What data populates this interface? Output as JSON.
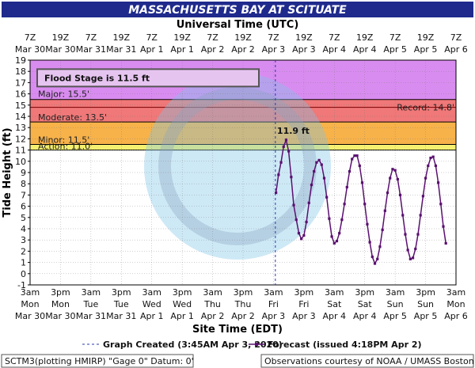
{
  "header": {
    "title": "MASSACHUSETTS BAY AT SCITUATE"
  },
  "chart_data": {
    "type": "line",
    "x_top_label": "Universal Time (UTC)",
    "x_bottom_label": "Site Time (EDT)",
    "ylabel": "Tide Height (ft)",
    "ylim": [
      -1,
      19
    ],
    "y_ticks": [
      -1,
      0,
      1,
      2,
      3,
      4,
      5,
      6,
      7,
      8,
      9,
      10,
      11,
      12,
      13,
      14,
      15,
      16,
      17,
      18,
      19
    ],
    "top_ticks": [
      [
        "7Z",
        "Mar 30"
      ],
      [
        "19Z",
        "Mar 30"
      ],
      [
        "7Z",
        "Mar 31"
      ],
      [
        "19Z",
        "Mar 31"
      ],
      [
        "7Z",
        "Apr 1"
      ],
      [
        "19Z",
        "Apr 1"
      ],
      [
        "7Z",
        "Apr 2"
      ],
      [
        "19Z",
        "Apr 2"
      ],
      [
        "7Z",
        "Apr 3"
      ],
      [
        "19Z",
        "Apr 3"
      ],
      [
        "7Z",
        "Apr 4"
      ],
      [
        "19Z",
        "Apr 4"
      ],
      [
        "7Z",
        "Apr 5"
      ],
      [
        "19Z",
        "Apr 5"
      ],
      [
        "7Z",
        "Apr 6"
      ]
    ],
    "bottom_ticks": [
      [
        "3am",
        "Mon",
        "Mar 30"
      ],
      [
        "3pm",
        "Mon",
        "Mar 30"
      ],
      [
        "3am",
        "Tue",
        "Mar 31"
      ],
      [
        "3pm",
        "Tue",
        "Mar 31"
      ],
      [
        "3am",
        "Wed",
        "Apr 1"
      ],
      [
        "3pm",
        "Wed",
        "Apr 1"
      ],
      [
        "3am",
        "Thu",
        "Apr 2"
      ],
      [
        "3pm",
        "Thu",
        "Apr 2"
      ],
      [
        "3am",
        "Fri",
        "Apr 3"
      ],
      [
        "3pm",
        "Fri",
        "Apr 3"
      ],
      [
        "3am",
        "Sat",
        "Apr 4"
      ],
      [
        "3pm",
        "Sat",
        "Apr 4"
      ],
      [
        "3am",
        "Sun",
        "Apr 5"
      ],
      [
        "3pm",
        "Sun",
        "Apr 5"
      ],
      [
        "3am",
        "Mon",
        "Apr 6"
      ]
    ],
    "flood_stage_box": "Flood Stage is 11.5 ft",
    "bands": [
      {
        "name": "Major",
        "label": "Major: 15.5'",
        "from": 15.5,
        "to": 19,
        "color": "#d98cf0"
      },
      {
        "name": "Moderate",
        "label": "Moderate: 13.5'",
        "from": 13.5,
        "to": 15.5,
        "color": "#f07878"
      },
      {
        "name": "Minor",
        "label": "Minor: 11.5'",
        "from": 11.5,
        "to": 13.5,
        "color": "#f7b24a"
      },
      {
        "name": "Action",
        "label": "Action: 11.0'",
        "from": 11.0,
        "to": 11.5,
        "color": "#f5f070"
      }
    ],
    "record": {
      "label": "Record: 14.8'",
      "value": 14.8
    },
    "created_marker": {
      "hours": 96.75
    },
    "peak_label": "11.9 ft",
    "series": [
      {
        "name": "Forecast (issued 4:18PM Apr 2)",
        "color": "#5a1070",
        "points": [
          [
            97,
            7.2
          ],
          [
            98,
            8.8
          ],
          [
            99,
            9.9
          ],
          [
            100,
            11.3
          ],
          [
            101,
            11.9
          ],
          [
            102,
            10.9
          ],
          [
            103,
            8.6
          ],
          [
            104,
            6.1
          ],
          [
            105,
            4.8
          ],
          [
            106,
            3.6
          ],
          [
            107,
            3.1
          ],
          [
            108,
            3.4
          ],
          [
            109,
            4.6
          ],
          [
            110,
            6.3
          ],
          [
            111,
            7.9
          ],
          [
            112,
            9.1
          ],
          [
            113,
            9.9
          ],
          [
            114,
            10.1
          ],
          [
            115,
            9.7
          ],
          [
            116,
            8.5
          ],
          [
            117,
            6.8
          ],
          [
            118,
            4.9
          ],
          [
            119,
            3.3
          ],
          [
            120,
            2.7
          ],
          [
            121,
            2.9
          ],
          [
            122,
            3.6
          ],
          [
            123,
            4.8
          ],
          [
            124,
            6.2
          ],
          [
            125,
            7.7
          ],
          [
            126,
            9.1
          ],
          [
            127,
            10.2
          ],
          [
            128,
            10.5
          ],
          [
            129,
            10.5
          ],
          [
            130,
            9.6
          ],
          [
            131,
            8.1
          ],
          [
            132,
            6.2
          ],
          [
            133,
            4.4
          ],
          [
            134,
            2.8
          ],
          [
            135,
            1.5
          ],
          [
            136,
            0.9
          ],
          [
            137,
            1.3
          ],
          [
            138,
            2.4
          ],
          [
            139,
            3.9
          ],
          [
            140,
            5.6
          ],
          [
            141,
            7.2
          ],
          [
            142,
            8.5
          ],
          [
            143,
            9.3
          ],
          [
            144,
            9.2
          ],
          [
            145,
            8.4
          ],
          [
            146,
            7.0
          ],
          [
            147,
            5.2
          ],
          [
            148,
            3.5
          ],
          [
            149,
            2.1
          ],
          [
            150,
            1.3
          ],
          [
            151,
            1.4
          ],
          [
            152,
            2.2
          ],
          [
            153,
            3.5
          ],
          [
            154,
            5.2
          ],
          [
            155,
            6.9
          ],
          [
            156,
            8.5
          ],
          [
            157,
            9.6
          ],
          [
            158,
            10.3
          ],
          [
            159,
            10.4
          ],
          [
            160,
            9.6
          ],
          [
            161,
            8.1
          ],
          [
            162,
            6.2
          ],
          [
            163,
            4.2
          ],
          [
            164,
            2.7
          ]
        ]
      }
    ],
    "legend": {
      "created": "Graph Created (3:45AM Apr 3, 2020)",
      "forecast": "Forecast (issued 4:18PM Apr 2)"
    }
  },
  "footer": {
    "left": "SCTM3(plotting HMIRP) \"Gage 0\" Datum: 0'",
    "right": "Observations courtesy of NOAA / UMASS Boston"
  }
}
